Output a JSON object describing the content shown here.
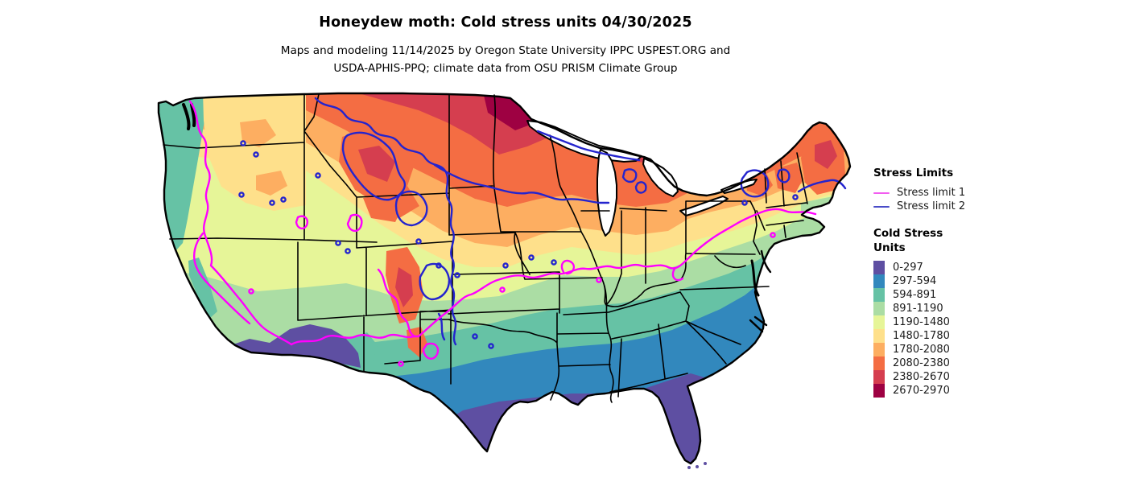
{
  "header": {
    "title": "Honeydew moth: Cold stress units 04/30/2025",
    "subtitle_line1": "Maps and modeling 11/14/2025 by Oregon State University IPPC USPEST.ORG and",
    "subtitle_line2": "USDA-APHIS-PPQ; climate data from OSU PRISM Climate Group"
  },
  "legend": {
    "stress_limits": {
      "title": "Stress Limits",
      "items": [
        {
          "label": "Stress limit 1",
          "color": "#f25cf0"
        },
        {
          "label": "Stress limit 2",
          "color": "#4a4cc8"
        }
      ]
    },
    "cold_stress_units": {
      "title_line1": "Cold Stress",
      "title_line2": "Units",
      "classes": [
        {
          "label": "0-297",
          "color": "#5e4fa2"
        },
        {
          "label": "297-594",
          "color": "#3288bd"
        },
        {
          "label": "594-891",
          "color": "#66c2a5"
        },
        {
          "label": "891-1190",
          "color": "#abdda4"
        },
        {
          "label": "1190-1480",
          "color": "#e6f598"
        },
        {
          "label": "1480-1780",
          "color": "#fee08b"
        },
        {
          "label": "1780-2080",
          "color": "#fdae61"
        },
        {
          "label": "2080-2380",
          "color": "#f46d43"
        },
        {
          "label": "2380-2670",
          "color": "#d53e4f"
        },
        {
          "label": "2670-2970",
          "color": "#9e0142"
        }
      ]
    }
  },
  "map": {
    "stress_limit_1_color": "#ff00ff",
    "stress_limit_2_color": "#2424ce",
    "state_border_color": "#000000",
    "outline_color": "#000000",
    "water_color": "#ffffff",
    "background_color": "#ffffff"
  },
  "chart_data": {
    "type": "heatmap",
    "subtype": "choropleth-us-map",
    "title": "Honeydew moth: Cold stress units 04/30/2025",
    "legend_position": "right",
    "value_label": "Cold Stress Units",
    "class_breaks": [
      0,
      297,
      594,
      891,
      1190,
      1480,
      1780,
      2080,
      2380,
      2670,
      2970
    ],
    "palette": [
      "#5e4fa2",
      "#3288bd",
      "#66c2a5",
      "#abdda4",
      "#e6f598",
      "#fee08b",
      "#fdae61",
      "#f46d43",
      "#d53e4f",
      "#9e0142"
    ],
    "spatial_pattern": "Highest cold stress (2380-2970) in northern Minnesota, North Dakota and northern Rockies; mid values across the central plains; lowest values (0-594) along the Gulf Coast, Florida peninsula, south Texas, southern Arizona and the California coast.",
    "overlays": [
      "Stress limit 1 (magenta contour)",
      "Stress limit 2 (blue contour)"
    ]
  }
}
